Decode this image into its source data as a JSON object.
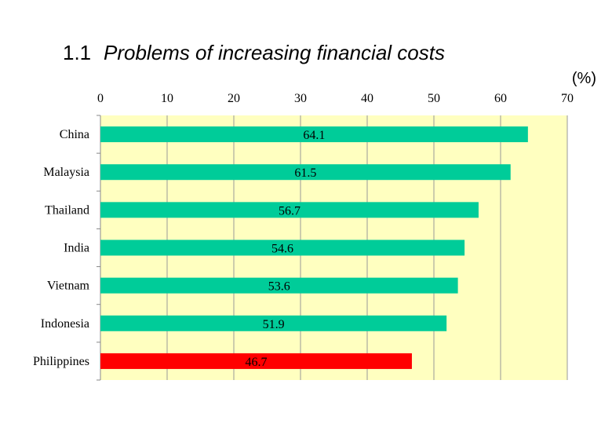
{
  "chart_data": {
    "type": "bar",
    "orientation": "horizontal",
    "title_number": "1.1",
    "title": "Problems of increasing financial costs",
    "unit_label": "(%)",
    "xlim": [
      0,
      70
    ],
    "ticks": [
      0,
      10,
      20,
      30,
      40,
      50,
      60,
      70
    ],
    "tick_labels": [
      "0",
      "10",
      "20",
      "30",
      "40",
      "50",
      "60",
      "70"
    ],
    "categories": [
      "China",
      "Malaysia",
      "Thailand",
      "India",
      "Vietnam",
      "Indonesia",
      "Philippines"
    ],
    "values": [
      64.1,
      61.5,
      56.7,
      54.6,
      53.6,
      51.9,
      46.7
    ],
    "value_labels": [
      "64.1",
      "61.5",
      "56.7",
      "54.6",
      "53.6",
      "51.9",
      "46.7"
    ],
    "bar_colors": [
      "#00CC99",
      "#00CC99",
      "#00CC99",
      "#00CC99",
      "#00CC99",
      "#00CC99",
      "#FF0000"
    ],
    "plot_background": "#FFFFC0",
    "grid": true
  }
}
